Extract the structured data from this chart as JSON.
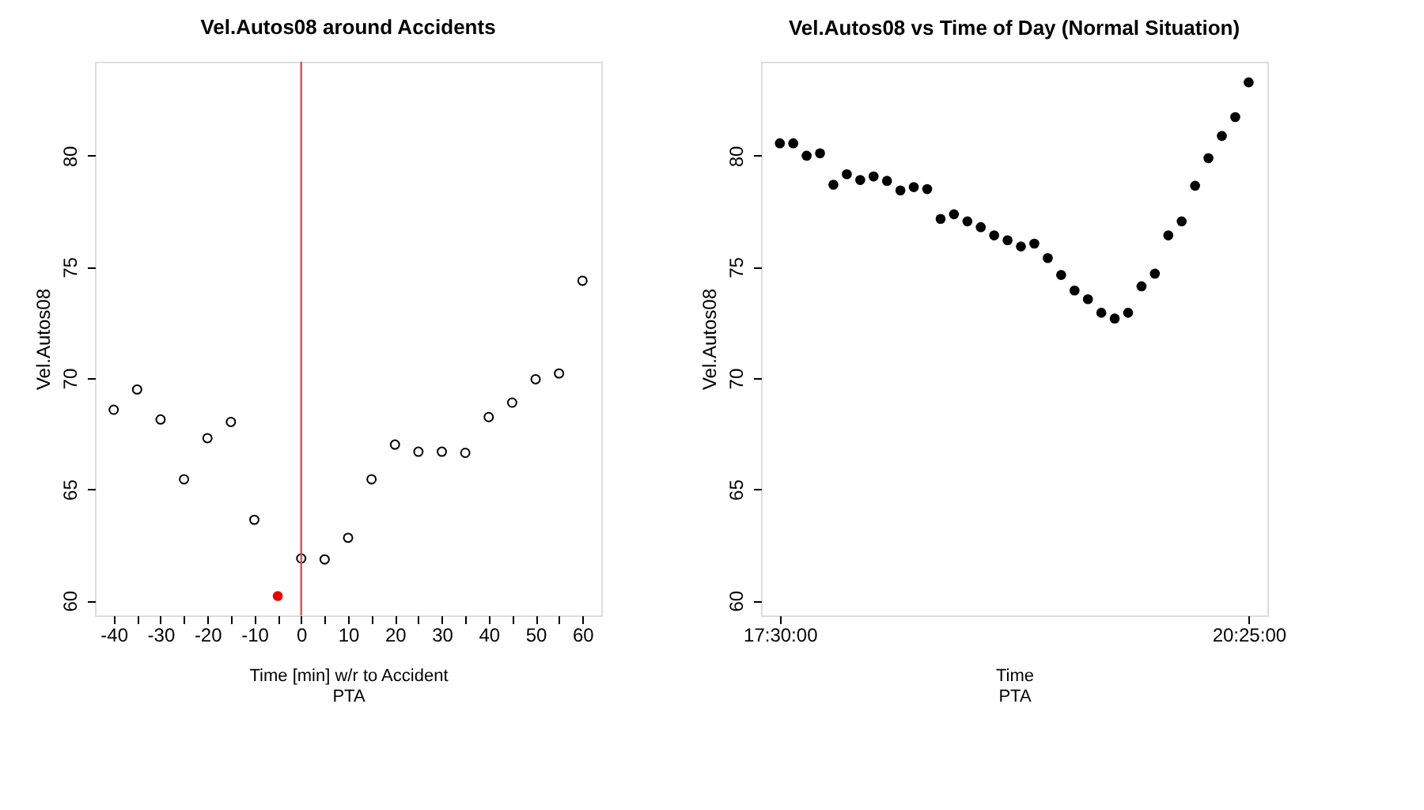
{
  "chart_data": [
    {
      "type": "scatter",
      "title": "Vel.Autos08 around Accidents",
      "xlabel": "Time [min] w/r to Accident",
      "ylabel": "Vel.Autos08",
      "annotations": [
        "PTA"
      ],
      "marker": "circle",
      "grid": false,
      "xlim": [
        -44,
        64
      ],
      "ylim": [
        59.33,
        84.23
      ],
      "xticks": [
        -40,
        {
          "value": -35,
          "label": null
        },
        -30,
        {
          "value": -25,
          "label": null
        },
        -20,
        {
          "value": -15,
          "label": null
        },
        -10,
        {
          "value": -5,
          "label": null
        },
        0,
        {
          "value": 5,
          "label": null
        },
        10,
        {
          "value": 15,
          "label": null
        },
        20,
        {
          "value": 25,
          "label": null
        },
        30,
        {
          "value": 35,
          "label": null
        },
        40,
        {
          "value": 45,
          "label": null
        },
        50,
        {
          "value": 55,
          "label": null
        },
        60
      ],
      "yticks": [
        60,
        65,
        70,
        75,
        80
      ],
      "ref_lines": [
        {
          "axis": "x",
          "value": 0,
          "label": null,
          "color": "#d9534f"
        }
      ],
      "series": [
        {
          "color": "#000000",
          "x": [
            -40,
            -35,
            -30,
            -25,
            -20,
            -15,
            -10,
            0,
            5,
            10,
            15,
            20,
            25,
            30,
            35,
            40,
            45,
            50,
            55,
            60
          ],
          "values": [
            68.58,
            69.49,
            68.14,
            65.45,
            67.3,
            68.03,
            63.63,
            61.89,
            61.85,
            62.82,
            65.45,
            67.01,
            66.69,
            66.69,
            66.64,
            68.25,
            68.9,
            69.95,
            70.21,
            74.38
          ]
        },
        {
          "color": "#ee0000",
          "x": [
            -5
          ],
          "values": [
            60.2
          ]
        }
      ]
    },
    {
      "type": "scatter",
      "title": "Vel.Autos08 vs Time of Day (Normal Situation)",
      "xlabel": "Time",
      "ylabel": "Vel.Autos08",
      "annotations": [
        "PTA"
      ],
      "marker": "circle",
      "grid": false,
      "xlim": [
        17.383,
        20.533
      ],
      "ylim": [
        59.33,
        84.23
      ],
      "xticks": [
        {
          "value": 17.5,
          "label": "17:30:00"
        },
        {
          "value": 20.4167,
          "label": "20:25:00"
        }
      ],
      "yticks": [
        60,
        65,
        70,
        75,
        80
      ],
      "series": [
        {
          "color": "#000000",
          "x": [
            17.5,
            17.5833,
            17.6667,
            17.75,
            17.8333,
            17.9167,
            18.0,
            18.0833,
            18.1667,
            18.25,
            18.3333,
            18.4167,
            18.5,
            18.5833,
            18.6667,
            18.75,
            18.8333,
            18.9167,
            19.0,
            19.0833,
            19.1667,
            19.25,
            19.3333,
            19.4167,
            19.5,
            19.5833,
            19.6667,
            19.75,
            19.8333,
            19.9167,
            20.0,
            20.0833,
            20.1667,
            20.25,
            20.3333,
            20.4167
          ],
          "values": [
            80.56,
            80.56,
            80.0,
            80.11,
            78.7,
            79.17,
            78.91,
            79.07,
            78.87,
            78.44,
            78.59,
            78.5,
            77.16,
            77.37,
            77.05,
            76.79,
            76.42,
            76.2,
            75.92,
            76.05,
            75.4,
            74.64,
            73.94,
            73.55,
            72.94,
            72.68,
            72.94,
            74.13,
            74.7,
            76.42,
            77.05,
            78.65,
            79.89,
            80.89,
            81.74,
            83.3
          ]
        }
      ]
    }
  ]
}
